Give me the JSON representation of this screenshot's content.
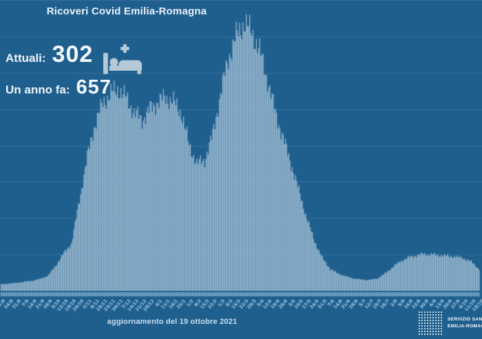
{
  "header": {
    "title": "Ricoveri Covid Emilia-Romagna"
  },
  "stats": {
    "current_label": "Attuali:",
    "current_value": "302",
    "year_ago_label": "Un anno fa:",
    "year_ago_value": "657",
    "icon": "hospital-bed-with-cross"
  },
  "footer": {
    "update_text": "aggiornamento del 19 ottobre 2021",
    "logo_line1": "SERVIZIO SANITARIO",
    "logo_line2": "EMILIA-ROMAGNA"
  },
  "colors": {
    "background": "#1f5f8e",
    "bar": "#a9c4d8",
    "grid": "#35719f",
    "tick": "#9ec6e0",
    "axis_label": "#a6cbe6",
    "text": "#eef4f9",
    "icon": "#b5c9d7"
  },
  "chart_data": {
    "type": "bar",
    "title": "Ricoveri Covid Emilia-Romagna",
    "xlabel": "",
    "ylabel": "",
    "ylim": [
      0,
      4000
    ],
    "gridline_step": 500,
    "grid": true,
    "legend_position": "none",
    "bar_granularity": "daily bars interpolated between weekly anchors",
    "x": [
      "17/8",
      "24/8",
      "31/8",
      "7/9",
      "14/9",
      "21/9",
      "28/9",
      "5/10",
      "12/10",
      "19/10",
      "26/10",
      "2/11",
      "9/11",
      "16/11",
      "23/11",
      "30/11",
      "7/12",
      "14/12",
      "21/12",
      "28/12",
      "4/1",
      "11/1",
      "18/1",
      "25/1",
      "1/2",
      "8/2",
      "15/2",
      "22/2",
      "1/3",
      "8/3",
      "15/3",
      "22/3",
      "29/3",
      "5/4",
      "12/4",
      "19/4",
      "26/4",
      "3/5",
      "10/5",
      "17/5",
      "24/5",
      "31/5",
      "7/6",
      "14/6",
      "21/6",
      "28/6",
      "5/7",
      "12/7",
      "19/7",
      "26/7",
      "2/8",
      "9/8",
      "16/8",
      "23/8",
      "30/8",
      "6/9",
      "13/9",
      "20/9",
      "27/9",
      "4/10",
      "11/10",
      "18/10"
    ],
    "values": [
      90,
      100,
      110,
      125,
      140,
      165,
      210,
      350,
      520,
      657,
      1250,
      1850,
      2300,
      2580,
      2720,
      2770,
      2650,
      2450,
      2350,
      2500,
      2600,
      2660,
      2600,
      2450,
      2000,
      1750,
      1800,
      2150,
      2700,
      3200,
      3500,
      3680,
      3560,
      3300,
      2900,
      2450,
      2100,
      1750,
      1380,
      1000,
      680,
      450,
      300,
      240,
      200,
      170,
      155,
      150,
      170,
      240,
      330,
      410,
      460,
      490,
      505,
      500,
      490,
      480,
      470,
      450,
      400,
      302
    ]
  }
}
